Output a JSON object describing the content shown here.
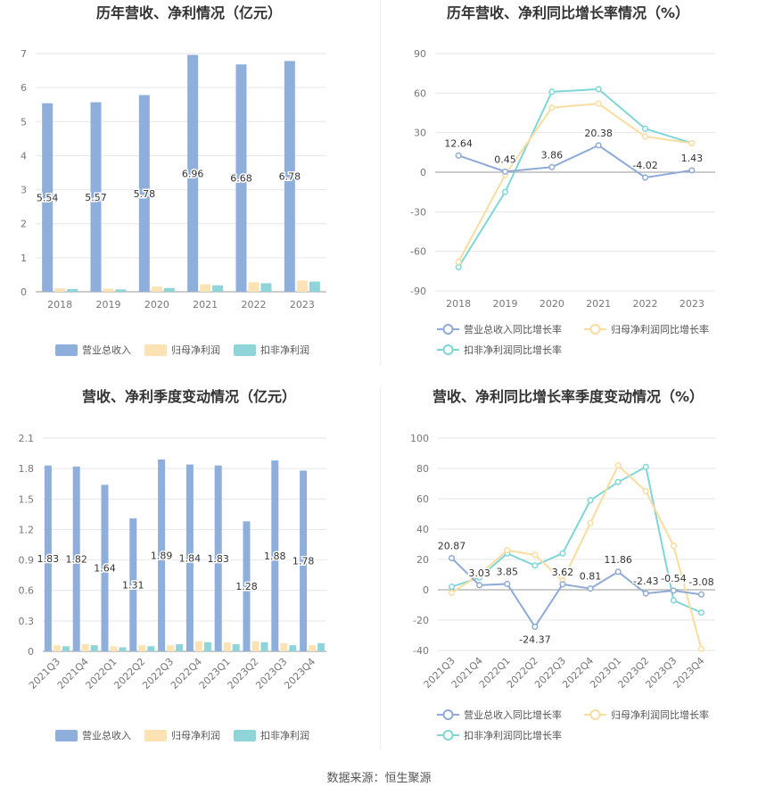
{
  "footer": {
    "source": "数据来源：恒生聚源"
  },
  "chart_data": [
    {
      "type": "bar",
      "title": "历年营收、净利情况（亿元）",
      "categories": [
        "2018",
        "2019",
        "2020",
        "2021",
        "2022",
        "2023"
      ],
      "ylim": [
        0,
        7
      ],
      "yticks": [
        0,
        1,
        2,
        3,
        4,
        5,
        6,
        7
      ],
      "legend_position": "bottom",
      "series": [
        {
          "name": "营业总收入",
          "color": "#8eaedb",
          "values": [
            5.54,
            5.57,
            5.78,
            6.96,
            6.68,
            6.78
          ],
          "labels": [
            "5.54",
            "5.57",
            "5.78",
            "6.96",
            "6.68",
            "6.78"
          ]
        },
        {
          "name": "归母净利润",
          "color": "#fde2b3",
          "values": [
            0.1,
            0.09,
            0.15,
            0.22,
            0.28,
            0.33
          ]
        },
        {
          "name": "扣非净利润",
          "color": "#8fd4d8",
          "values": [
            0.08,
            0.07,
            0.11,
            0.19,
            0.25,
            0.3
          ]
        }
      ]
    },
    {
      "type": "line",
      "title": "历年营收、净利同比增长率情况（%）",
      "categories": [
        "2018",
        "2019",
        "2020",
        "2021",
        "2022",
        "2023"
      ],
      "ylim": [
        -90,
        90
      ],
      "yticks": [
        -90,
        -60,
        -30,
        0,
        30,
        60,
        90
      ],
      "legend_position": "bottom",
      "series": [
        {
          "name": "营业总收入同比增长率",
          "color": "#8eaad6",
          "values": [
            12.64,
            0.45,
            3.86,
            20.38,
            -4.02,
            1.43
          ],
          "labels": [
            "12.64",
            "0.45",
            "3.86",
            "20.38",
            "-4.02",
            "1.43"
          ]
        },
        {
          "name": "归母净利润同比增长率",
          "color": "#fbdc9f",
          "values": [
            -68,
            -2,
            49,
            52,
            27,
            22
          ]
        },
        {
          "name": "扣非净利润同比增长率",
          "color": "#7fd6d6",
          "values": [
            -72,
            -15,
            61,
            63,
            33,
            22
          ]
        }
      ]
    },
    {
      "type": "bar",
      "title": "营收、净利季度变动情况（亿元）",
      "categories": [
        "2021Q3",
        "2021Q4",
        "2022Q1",
        "2022Q2",
        "2022Q3",
        "2022Q4",
        "2023Q1",
        "2023Q2",
        "2023Q3",
        "2023Q4"
      ],
      "ylim": [
        0,
        2.1
      ],
      "yticks": [
        0,
        0.3,
        0.6,
        0.9,
        1.2,
        1.5,
        1.8,
        2.1
      ],
      "yticklabels": [
        "0",
        "0.3",
        "0.6",
        "0.9",
        "1.2",
        "1.5",
        "1.8",
        "2.1"
      ],
      "legend_position": "bottom",
      "series": [
        {
          "name": "营业总收入",
          "color": "#8eaedb",
          "values": [
            1.83,
            1.82,
            1.64,
            1.31,
            1.89,
            1.84,
            1.83,
            1.28,
            1.88,
            1.78
          ],
          "labels": [
            "1.83",
            "1.82",
            "1.64",
            "1.31",
            "1.89",
            "1.84",
            "1.83",
            "1.28",
            "1.88",
            "1.78"
          ]
        },
        {
          "name": "归母净利润",
          "color": "#fde2b3",
          "values": [
            0.06,
            0.07,
            0.05,
            0.06,
            0.06,
            0.1,
            0.09,
            0.1,
            0.08,
            0.06
          ]
        },
        {
          "name": "扣非净利润",
          "color": "#8fd4d8",
          "values": [
            0.05,
            0.06,
            0.04,
            0.05,
            0.07,
            0.09,
            0.07,
            0.09,
            0.06,
            0.08
          ]
        }
      ]
    },
    {
      "type": "line",
      "title": "营收、净利同比增长率季度变动情况（%）",
      "categories": [
        "2021Q3",
        "2021Q4",
        "2022Q1",
        "2022Q2",
        "2022Q3",
        "2022Q4",
        "2023Q1",
        "2023Q2",
        "2023Q3",
        "2023Q4"
      ],
      "ylim": [
        -40,
        100
      ],
      "yticks": [
        -40,
        -20,
        0,
        20,
        40,
        60,
        80,
        100
      ],
      "legend_position": "bottom",
      "series": [
        {
          "name": "营业总收入同比增长率",
          "color": "#8eaad6",
          "values": [
            20.87,
            3.03,
            3.85,
            -24.37,
            3.62,
            0.81,
            11.86,
            -2.43,
            -0.54,
            -3.08
          ],
          "labels": [
            "20.87",
            "3.03",
            "3.85",
            "-24.37",
            "3.62",
            "0.81",
            "11.86",
            "-2.43",
            "-0.54",
            "-3.08"
          ]
        },
        {
          "name": "归母净利润同比增长率",
          "color": "#fbdc9f",
          "values": [
            -2,
            10,
            26,
            23,
            6,
            44,
            82,
            65,
            29,
            -39
          ]
        },
        {
          "name": "扣非净利润同比增长率",
          "color": "#7fd6d6",
          "values": [
            2,
            8,
            24,
            16,
            24,
            59,
            71,
            81,
            -7,
            -15
          ]
        }
      ]
    }
  ]
}
